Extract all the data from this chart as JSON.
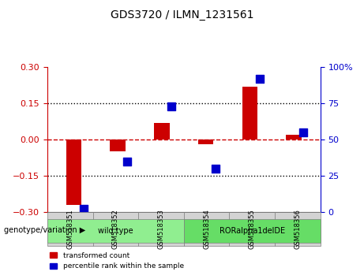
{
  "title": "GDS3720 / ILMN_1231561",
  "samples": [
    "GSM518351",
    "GSM518352",
    "GSM518353",
    "GSM518354",
    "GSM518355",
    "GSM518356"
  ],
  "red_values": [
    -0.27,
    -0.05,
    0.07,
    -0.02,
    0.22,
    0.02
  ],
  "blue_values": [
    2,
    35,
    73,
    30,
    92,
    55
  ],
  "ylim_left": [
    -0.3,
    0.3
  ],
  "ylim_right": [
    0,
    100
  ],
  "yticks_left": [
    -0.3,
    -0.15,
    0,
    0.15,
    0.3
  ],
  "yticks_right": [
    0,
    25,
    50,
    75,
    100
  ],
  "hlines": [
    -0.15,
    0,
    0.15
  ],
  "red_color": "#cc0000",
  "blue_color": "#0000cc",
  "groups": [
    {
      "label": "wild type",
      "samples": [
        0,
        1,
        2
      ],
      "color": "#90ee90"
    },
    {
      "label": "RORalpha1delDE",
      "samples": [
        3,
        4,
        5
      ],
      "color": "#66dd66"
    }
  ],
  "group_label": "genotype/variation",
  "legend_items": [
    {
      "label": "transformed count",
      "color": "#cc0000"
    },
    {
      "label": "percentile rank within the sample",
      "color": "#0000cc"
    }
  ],
  "bar_width": 0.35,
  "dot_size": 60
}
